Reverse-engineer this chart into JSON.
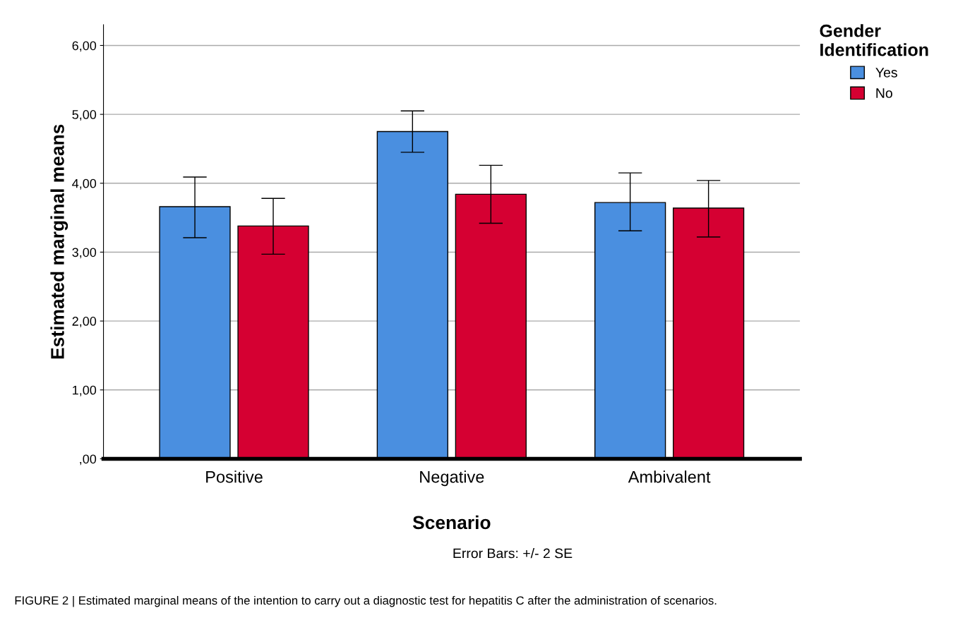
{
  "chart_data": {
    "type": "bar",
    "xlabel": "Scenario",
    "ylabel": "Estimated marginal means",
    "legend_title": "Gender\nIdentification",
    "categories": [
      "Positive",
      "Negative",
      "Ambivalent"
    ],
    "series": [
      {
        "name": "Yes",
        "color": "#4a8fe0",
        "values": [
          3.66,
          4.75,
          3.72
        ],
        "errors": [
          [
            3.21,
            4.09
          ],
          [
            4.45,
            5.05
          ],
          [
            3.31,
            4.15
          ]
        ]
      },
      {
        "name": "No",
        "color": "#d50032",
        "values": [
          3.38,
          3.84,
          3.64
        ],
        "errors": [
          [
            2.97,
            3.78
          ],
          [
            3.42,
            4.26
          ],
          [
            3.22,
            4.04
          ]
        ]
      }
    ],
    "ylim": [
      0,
      6.3
    ],
    "yticks": [
      {
        "value": 0,
        "label": ",00"
      },
      {
        "value": 1,
        "label": "1,00"
      },
      {
        "value": 2,
        "label": "2,00"
      },
      {
        "value": 3,
        "label": "3,00"
      },
      {
        "value": 4,
        "label": "4,00"
      },
      {
        "value": 5,
        "label": "5,00"
      },
      {
        "value": 6,
        "label": "6,00"
      }
    ],
    "grid": "y",
    "legend": "top right",
    "annotations": [
      "Error Bars: +/- 2 SE",
      "FIGURE 2 | Estimated marginal means of the intention to carry out a diagnostic test for hepatitis C after the administration of scenarios."
    ]
  }
}
